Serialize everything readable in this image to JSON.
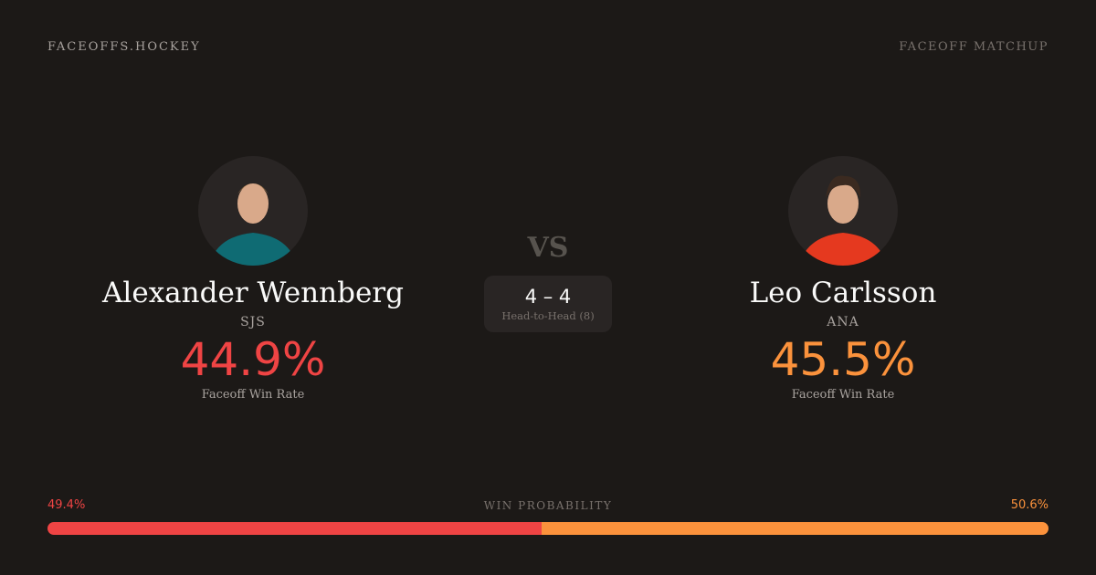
{
  "header": {
    "brand": "FACEOFFS.HOCKEY",
    "tag": "FACEOFF MATCHUP"
  },
  "players": [
    {
      "name": "Alexander Wennberg",
      "team": "SJS",
      "rate": "44.9%",
      "rate_label": "Faceoff Win Rate",
      "color": "#ef4444",
      "jersey": "#0f6b73"
    },
    {
      "name": "Leo Carlsson",
      "team": "ANA",
      "rate": "45.5%",
      "rate_label": "Faceoff Win Rate",
      "color": "#fb923c",
      "jersey": "#e5391f"
    }
  ],
  "vs": "VS",
  "head_to_head": {
    "score": "4 – 4",
    "label": "Head-to-Head (8)"
  },
  "win_probability": {
    "label": "WIN PROBABILITY",
    "left": "49.4%",
    "right": "50.6%",
    "left_value": 49.4,
    "right_value": 50.6
  }
}
